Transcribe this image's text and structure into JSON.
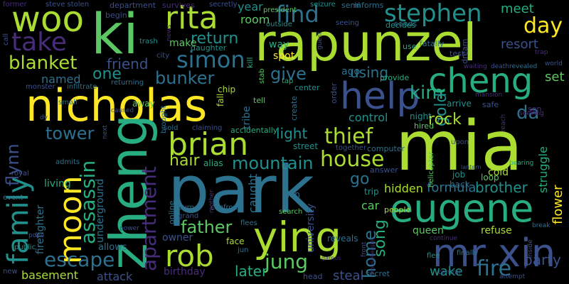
{
  "background": "#000000",
  "palette": [
    "#440154",
    "#472c7a",
    "#3b518b",
    "#2c718e",
    "#21908d",
    "#27ad81",
    "#5cc863",
    "#aadc32",
    "#fde725"
  ],
  "words": [
    {
      "text": "nicholas",
      "c": 8
    },
    {
      "text": "mia",
      "c": 7
    },
    {
      "text": "park",
      "c": 3
    },
    {
      "text": "rapunzel",
      "c": 7
    },
    {
      "text": "ki",
      "c": 6
    },
    {
      "text": "zheng",
      "c": 5
    },
    {
      "text": "ying",
      "c": 7
    },
    {
      "text": "help",
      "c": 2
    },
    {
      "text": "eugene",
      "c": 5
    },
    {
      "text": "cheng",
      "c": 5
    },
    {
      "text": "moon",
      "c": 8
    },
    {
      "text": "mr xin",
      "c": 2
    },
    {
      "text": "woo",
      "c": 7
    },
    {
      "text": "family",
      "c": 4
    },
    {
      "text": "rob",
      "c": 7
    },
    {
      "text": "rita",
      "c": 7
    },
    {
      "text": "brian",
      "c": 7
    },
    {
      "text": "take",
      "c": 1
    },
    {
      "text": "stephen",
      "c": 4
    },
    {
      "text": "fire",
      "c": 3
    },
    {
      "text": "house",
      "c": 7
    },
    {
      "text": "thief",
      "c": 7
    },
    {
      "text": "find",
      "c": 3
    },
    {
      "text": "simon",
      "c": 3
    },
    {
      "text": "assassin",
      "c": 5
    },
    {
      "text": "apartment",
      "c": 1
    },
    {
      "text": "day",
      "c": 8
    },
    {
      "text": "jung",
      "c": 6
    },
    {
      "text": "escape",
      "c": 3
    },
    {
      "text": "blanket",
      "c": 7
    },
    {
      "text": "mountain",
      "c": 4
    },
    {
      "text": "home",
      "c": 3
    },
    {
      "text": "kim",
      "c": 5
    },
    {
      "text": "father",
      "c": 6
    },
    {
      "text": "give",
      "c": 3
    },
    {
      "text": "tower",
      "c": 3
    },
    {
      "text": "bunker",
      "c": 3
    },
    {
      "text": "flynn",
      "c": 2
    },
    {
      "text": "return",
      "c": 4
    },
    {
      "text": "hair",
      "c": 7
    },
    {
      "text": "song",
      "c": 5
    },
    {
      "text": "da",
      "c": 3
    },
    {
      "text": "one",
      "c": 4
    },
    {
      "text": "gold",
      "c": 4
    },
    {
      "text": "friend",
      "c": 2
    },
    {
      "text": "rock",
      "c": 7
    },
    {
      "text": "brother",
      "c": 4
    },
    {
      "text": "party",
      "c": 2
    },
    {
      "text": "light",
      "c": 4
    },
    {
      "text": "go",
      "c": 3
    },
    {
      "text": "using",
      "c": 3
    },
    {
      "text": "formula",
      "c": 3
    },
    {
      "text": "meet",
      "c": 5
    },
    {
      "text": "later",
      "c": 5
    },
    {
      "text": "resort",
      "c": 2
    },
    {
      "text": "wake",
      "c": 4
    },
    {
      "text": "flower",
      "c": 8
    },
    {
      "text": "basement",
      "c": 7
    },
    {
      "text": "attack",
      "c": 2
    },
    {
      "text": "hidden",
      "c": 7
    },
    {
      "text": "steal",
      "c": 2
    },
    {
      "text": "named",
      "c": 3
    },
    {
      "text": "underground",
      "c": 3
    },
    {
      "text": "room",
      "c": 6
    },
    {
      "text": "control",
      "c": 4
    },
    {
      "text": "struggle",
      "c": 5
    },
    {
      "text": "caught",
      "c": 3
    },
    {
      "text": "year",
      "c": 4
    },
    {
      "text": "make",
      "c": 6
    },
    {
      "text": "way",
      "c": 5
    },
    {
      "text": "ago",
      "c": 3
    },
    {
      "text": "set",
      "c": 6
    },
    {
      "text": "car",
      "c": 6
    },
    {
      "text": "firefighter",
      "c": 3
    },
    {
      "text": "university",
      "c": 2
    },
    {
      "text": "cold",
      "c": 7
    },
    {
      "text": "living",
      "c": 5
    },
    {
      "text": "spot",
      "c": 8
    },
    {
      "text": "tribe",
      "c": 3
    },
    {
      "text": "queen",
      "c": 6
    },
    {
      "text": "refuse",
      "c": 7
    },
    {
      "text": "owner",
      "c": 2
    },
    {
      "text": "allows",
      "c": 3
    },
    {
      "text": "birthday",
      "c": 1
    },
    {
      "text": "night",
      "c": 4
    },
    {
      "text": "arrive",
      "c": 4
    },
    {
      "text": "loop",
      "c": 6
    },
    {
      "text": "back",
      "c": 3
    },
    {
      "text": "street",
      "c": 4
    },
    {
      "text": "away",
      "c": 6
    },
    {
      "text": "face",
      "c": 7
    },
    {
      "text": "plan",
      "c": 3
    },
    {
      "text": "reveals",
      "c": 3
    },
    {
      "text": "people",
      "c": 7
    },
    {
      "text": "trip",
      "c": 4
    },
    {
      "text": "job",
      "c": 4
    },
    {
      "text": "alias",
      "c": 5
    },
    {
      "text": "fall",
      "c": 7
    },
    {
      "text": "center",
      "c": 4
    },
    {
      "text": "kill",
      "c": 5
    },
    {
      "text": "sends",
      "c": 3
    },
    {
      "text": "daughter",
      "c": 4
    },
    {
      "text": "department",
      "c": 2
    },
    {
      "text": "begin",
      "c": 2
    },
    {
      "text": "semi",
      "c": 3
    },
    {
      "text": "informs",
      "c": 3
    },
    {
      "text": "survives",
      "c": 1
    },
    {
      "text": "fatally",
      "c": 3
    },
    {
      "text": "dream",
      "c": 2
    },
    {
      "text": "use",
      "c": 5
    },
    {
      "text": "test",
      "c": 2
    },
    {
      "text": "hired",
      "c": 6
    },
    {
      "text": "provide",
      "c": 5
    },
    {
      "text": "safe",
      "c": 2
    },
    {
      "text": "son",
      "c": 1
    },
    {
      "text": "order",
      "c": 2
    },
    {
      "text": "decides",
      "c": 4
    },
    {
      "text": "answer",
      "c": 2
    },
    {
      "text": "computer",
      "c": 3
    },
    {
      "text": "together",
      "c": 2
    },
    {
      "text": "helicopter",
      "c": 6
    },
    {
      "text": "head",
      "c": 2
    },
    {
      "text": "secret",
      "c": 3
    },
    {
      "text": "search",
      "c": 6
    },
    {
      "text": "online",
      "c": 3
    },
    {
      "text": "burn",
      "c": 3
    },
    {
      "text": "grand",
      "c": 2
    },
    {
      "text": "confronts",
      "c": 3
    },
    {
      "text": "flees",
      "c": 3
    },
    {
      "text": "jun",
      "c": 3
    },
    {
      "text": "mother",
      "c": 1
    },
    {
      "text": "accidentally",
      "c": 5
    },
    {
      "text": "claiming",
      "c": 2
    },
    {
      "text": "brought",
      "c": 3
    },
    {
      "text": "sold",
      "c": 3
    },
    {
      "text": "chip",
      "c": 7
    },
    {
      "text": "tap",
      "c": 5
    },
    {
      "text": "tell",
      "c": 6
    },
    {
      "text": "create",
      "c": 3
    },
    {
      "text": "stab",
      "c": 6
    },
    {
      "text": "outside",
      "c": 4
    },
    {
      "text": "president",
      "c": 6
    },
    {
      "text": "seizure",
      "c": 4
    },
    {
      "text": "guest",
      "c": 2
    },
    {
      "text": "seeing",
      "c": 2
    },
    {
      "text": "news",
      "c": 1
    },
    {
      "text": "city",
      "c": 2
    },
    {
      "text": "trash",
      "c": 4
    },
    {
      "text": "secretly",
      "c": 2
    },
    {
      "text": "steve stolen",
      "c": 2
    },
    {
      "text": "former",
      "c": 1
    },
    {
      "text": "call",
      "c": 2
    },
    {
      "text": "small",
      "c": 3
    },
    {
      "text": "infiltrate",
      "c": 3
    },
    {
      "text": "monster",
      "c": 2
    },
    {
      "text": "returning",
      "c": 3
    },
    {
      "text": "caused",
      "c": 2
    },
    {
      "text": "royal",
      "c": 2
    },
    {
      "text": "admits",
      "c": 3
    },
    {
      "text": "event",
      "c": 3
    },
    {
      "text": "public",
      "c": 4
    },
    {
      "text": "pope",
      "c": 2
    },
    {
      "text": "new",
      "c": 2
    },
    {
      "text": "power",
      "c": 2
    },
    {
      "text": "front",
      "c": 2
    },
    {
      "text": "housekeeper",
      "c": 1
    },
    {
      "text": "continue",
      "c": 1
    },
    {
      "text": "finally",
      "c": 3
    },
    {
      "text": "flee",
      "c": 4
    },
    {
      "text": "central",
      "c": 2
    },
    {
      "text": "attempt",
      "c": 2
    },
    {
      "text": "inside",
      "c": 2
    },
    {
      "text": "break",
      "c": 3
    },
    {
      "text": "lantern",
      "c": 2
    },
    {
      "text": "bearing",
      "c": 5
    },
    {
      "text": "reach",
      "c": 1
    },
    {
      "text": "seeking",
      "c": 1
    },
    {
      "text": "mansion",
      "c": 1
    },
    {
      "text": "death",
      "c": 2
    },
    {
      "text": "revealed",
      "c": 3
    },
    {
      "text": "world",
      "c": 2
    },
    {
      "text": "trap",
      "c": 1
    },
    {
      "text": "waiting",
      "c": 1
    },
    {
      "text": "upon",
      "c": 2
    },
    {
      "text": "next",
      "c": 2
    },
    {
      "text": "dy",
      "c": 2
    },
    {
      "text": "garnos",
      "c": 1
    }
  ]
}
